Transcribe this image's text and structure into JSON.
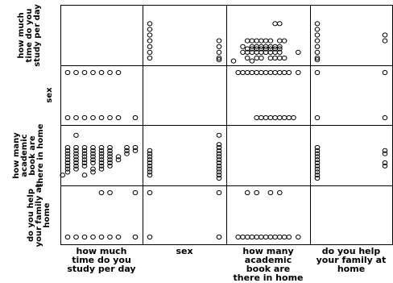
{
  "chart_data": {
    "type": "scatter",
    "variables": [
      "how much time do you study per day",
      "sex",
      "how many academic book are there in home",
      "do you help your family at home"
    ],
    "row_labels": [
      [
        "how much",
        "time do you",
        "study per day"
      ],
      [
        "sex"
      ],
      [
        "how many",
        "academic",
        "book are",
        "there in home"
      ],
      [
        "do you help",
        "your family at",
        "home"
      ]
    ],
    "col_labels": [
      [
        "how much",
        "time do you",
        "study per day"
      ],
      [
        "sex"
      ],
      [
        "how many",
        "academic",
        "book are",
        "there in home"
      ],
      [
        "do you help",
        "your family at",
        "home"
      ]
    ],
    "ranges": [
      [
        0,
        8
      ],
      [
        1,
        2
      ],
      [
        0,
        15
      ],
      [
        1,
        2
      ]
    ],
    "marker": "open-circle",
    "grid": false,
    "cells": [
      {
        "row": 0,
        "col": 1,
        "points": [
          [
            1,
            6
          ],
          [
            1,
            5
          ],
          [
            1,
            4
          ],
          [
            1,
            3
          ],
          [
            1,
            2
          ],
          [
            1,
            1
          ],
          [
            1,
            0
          ],
          [
            2,
            3
          ],
          [
            2,
            2
          ],
          [
            2,
            1
          ],
          [
            2,
            0
          ],
          [
            2,
            -0.3
          ]
        ]
      },
      {
        "row": 0,
        "col": 2,
        "points": [
          [
            9,
            6
          ],
          [
            10,
            6
          ],
          [
            3,
            3
          ],
          [
            4,
            3
          ],
          [
            5,
            3
          ],
          [
            6,
            3
          ],
          [
            7,
            3
          ],
          [
            8,
            3
          ],
          [
            10,
            3
          ],
          [
            11,
            3
          ],
          [
            2,
            2
          ],
          [
            4,
            2
          ],
          [
            5,
            2
          ],
          [
            6,
            2
          ],
          [
            7,
            2
          ],
          [
            8,
            2
          ],
          [
            9,
            2
          ],
          [
            10,
            2
          ],
          [
            3,
            1.6
          ],
          [
            4,
            1.6
          ],
          [
            5,
            1.6
          ],
          [
            6,
            1.6
          ],
          [
            7,
            1.6
          ],
          [
            8,
            1.6
          ],
          [
            9,
            1.6
          ],
          [
            10,
            1.6
          ],
          [
            2,
            1
          ],
          [
            3,
            1
          ],
          [
            4,
            1
          ],
          [
            5,
            1
          ],
          [
            6,
            1
          ],
          [
            7,
            1
          ],
          [
            8,
            1
          ],
          [
            9,
            1
          ],
          [
            10,
            1
          ],
          [
            14,
            1
          ],
          [
            3,
            0
          ],
          [
            5,
            0
          ],
          [
            6,
            0
          ],
          [
            8,
            0
          ],
          [
            9,
            0
          ],
          [
            10,
            0
          ],
          [
            11,
            0
          ],
          [
            0,
            -0.5
          ],
          [
            4,
            -0.5
          ]
        ]
      },
      {
        "row": 0,
        "col": 3,
        "points": [
          [
            1,
            6
          ],
          [
            1,
            5
          ],
          [
            1,
            4
          ],
          [
            1,
            3
          ],
          [
            1,
            2
          ],
          [
            1,
            1
          ],
          [
            1,
            0
          ],
          [
            1,
            -0.3
          ],
          [
            2,
            4
          ],
          [
            2,
            3
          ]
        ]
      },
      {
        "row": 1,
        "col": 0,
        "points": [
          [
            0,
            2
          ],
          [
            1,
            2
          ],
          [
            2,
            2
          ],
          [
            3,
            2
          ],
          [
            4,
            2
          ],
          [
            5,
            2
          ],
          [
            6,
            2
          ],
          [
            0,
            1
          ],
          [
            1,
            1
          ],
          [
            2,
            1
          ],
          [
            3,
            1
          ],
          [
            4,
            1
          ],
          [
            5,
            1
          ],
          [
            6,
            1
          ],
          [
            8,
            1
          ]
        ]
      },
      {
        "row": 1,
        "col": 2,
        "points": [
          [
            1,
            2
          ],
          [
            2,
            2
          ],
          [
            3,
            2
          ],
          [
            4,
            2
          ],
          [
            5,
            2
          ],
          [
            6,
            2
          ],
          [
            7,
            2
          ],
          [
            8,
            2
          ],
          [
            9,
            2
          ],
          [
            10,
            2
          ],
          [
            11,
            2
          ],
          [
            12,
            2
          ],
          [
            14,
            2
          ],
          [
            5,
            1
          ],
          [
            6,
            1
          ],
          [
            7,
            1
          ],
          [
            8,
            1
          ],
          [
            9,
            1
          ],
          [
            10,
            1
          ],
          [
            11,
            1
          ],
          [
            12,
            1
          ],
          [
            13,
            1
          ]
        ]
      },
      {
        "row": 1,
        "col": 3,
        "points": [
          [
            1,
            2
          ],
          [
            2,
            2
          ],
          [
            1,
            1
          ],
          [
            2,
            1
          ]
        ]
      },
      {
        "row": 2,
        "col": 0,
        "points": [
          [
            1,
            14
          ],
          [
            0,
            10
          ],
          [
            1,
            10
          ],
          [
            2,
            10
          ],
          [
            3,
            10
          ],
          [
            4,
            10
          ],
          [
            5,
            10
          ],
          [
            7,
            10
          ],
          [
            8,
            10
          ],
          [
            0,
            9
          ],
          [
            1,
            9
          ],
          [
            2,
            9
          ],
          [
            3,
            9
          ],
          [
            4,
            9
          ],
          [
            5,
            9
          ],
          [
            7,
            9
          ],
          [
            8,
            9
          ],
          [
            0,
            8
          ],
          [
            1,
            8
          ],
          [
            2,
            8
          ],
          [
            3,
            8
          ],
          [
            4,
            8
          ],
          [
            5,
            8
          ],
          [
            7,
            8
          ],
          [
            0,
            7
          ],
          [
            1,
            7
          ],
          [
            2,
            7
          ],
          [
            3,
            7
          ],
          [
            4,
            7
          ],
          [
            5,
            7
          ],
          [
            6,
            7
          ],
          [
            0,
            6
          ],
          [
            1,
            6
          ],
          [
            2,
            6
          ],
          [
            3,
            6
          ],
          [
            4,
            6
          ],
          [
            5,
            6
          ],
          [
            6,
            6
          ],
          [
            0,
            5
          ],
          [
            1,
            5
          ],
          [
            2,
            5
          ],
          [
            3,
            5
          ],
          [
            4,
            5
          ],
          [
            5,
            5
          ],
          [
            0,
            4
          ],
          [
            1,
            4
          ],
          [
            2,
            4
          ],
          [
            4,
            4
          ],
          [
            5,
            4
          ],
          [
            0,
            3
          ],
          [
            1,
            3
          ],
          [
            3,
            3
          ],
          [
            4,
            3
          ],
          [
            0,
            2
          ],
          [
            3,
            2
          ],
          [
            -0.6,
            1
          ],
          [
            2,
            1
          ]
        ]
      },
      {
        "row": 2,
        "col": 1,
        "points": [
          [
            1,
            9
          ],
          [
            1,
            8
          ],
          [
            1,
            7
          ],
          [
            1,
            6
          ],
          [
            1,
            5
          ],
          [
            1,
            4
          ],
          [
            1,
            3
          ],
          [
            1,
            2
          ],
          [
            1,
            1
          ],
          [
            2,
            14
          ],
          [
            2,
            11
          ],
          [
            2,
            10
          ],
          [
            2,
            9
          ],
          [
            2,
            8
          ],
          [
            2,
            7
          ],
          [
            2,
            6
          ],
          [
            2,
            5
          ],
          [
            2,
            4
          ],
          [
            2,
            3
          ],
          [
            2,
            2
          ],
          [
            2,
            1
          ],
          [
            2,
            0
          ]
        ]
      },
      {
        "row": 2,
        "col": 3,
        "points": [
          [
            1,
            10
          ],
          [
            1,
            9
          ],
          [
            1,
            8
          ],
          [
            1,
            7
          ],
          [
            1,
            6
          ],
          [
            1,
            5
          ],
          [
            1,
            4
          ],
          [
            1,
            3
          ],
          [
            1,
            2
          ],
          [
            1,
            1
          ],
          [
            1,
            0
          ],
          [
            2,
            9
          ],
          [
            2,
            8
          ],
          [
            2,
            5
          ],
          [
            2,
            4
          ]
        ]
      },
      {
        "row": 3,
        "col": 0,
        "points": [
          [
            4,
            2
          ],
          [
            5,
            2
          ],
          [
            8,
            2
          ],
          [
            0,
            1
          ],
          [
            1,
            1
          ],
          [
            2,
            1
          ],
          [
            3,
            1
          ],
          [
            4,
            1
          ],
          [
            5,
            1
          ],
          [
            6,
            1
          ],
          [
            8,
            1
          ]
        ]
      },
      {
        "row": 3,
        "col": 1,
        "points": [
          [
            1,
            2
          ],
          [
            2,
            2
          ],
          [
            1,
            1
          ],
          [
            2,
            1
          ]
        ]
      },
      {
        "row": 3,
        "col": 2,
        "points": [
          [
            3,
            2
          ],
          [
            5,
            2
          ],
          [
            8,
            2
          ],
          [
            10,
            2
          ],
          [
            1,
            1
          ],
          [
            2,
            1
          ],
          [
            3,
            1
          ],
          [
            4,
            1
          ],
          [
            5,
            1
          ],
          [
            6,
            1
          ],
          [
            7,
            1
          ],
          [
            8,
            1
          ],
          [
            9,
            1
          ],
          [
            10,
            1
          ],
          [
            11,
            1
          ],
          [
            12,
            1
          ],
          [
            14,
            1
          ]
        ]
      }
    ]
  }
}
